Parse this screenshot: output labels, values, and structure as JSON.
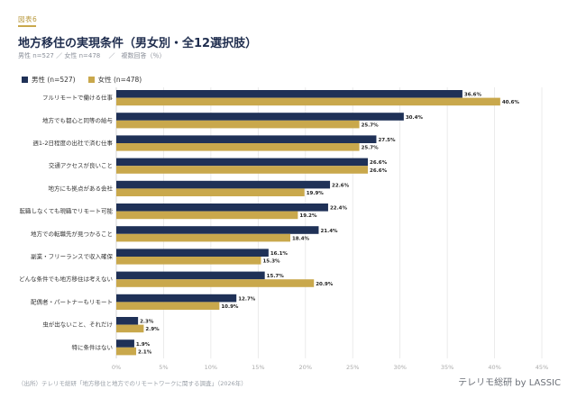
{
  "header": {
    "figure_tag": "図表6",
    "title": "地方移住の実現条件（男女別・全12選択肢）",
    "subtitle": "男性 n=527 ／ 女性 n=478 　／　複数回答（％）"
  },
  "footer": {
    "source": "（出所）テレリモ総研「地方移住と地方でのリモートワークに関する調査」（2026年）",
    "brand": "テレリモ総研 by LASSIC"
  },
  "colors": {
    "male": "#1f3157",
    "female": "#c9a84c",
    "grid": "#e6e6e6"
  },
  "chart_data": {
    "type": "bar",
    "orientation": "horizontal",
    "title": "地方移住の実現条件（男女別・全12選択肢）",
    "legend_position": "top-left",
    "grid": true,
    "xlim": [
      0,
      45
    ],
    "x_ticks": [
      "0%",
      "5%",
      "10%",
      "15%",
      "20%",
      "25%",
      "30%",
      "35%",
      "40%",
      "45%"
    ],
    "tick_values": [
      0,
      5,
      10,
      15,
      20,
      25,
      30,
      35,
      40,
      45
    ],
    "categories": [
      "フルリモートで働ける仕事",
      "地方でも都心と同等の給与",
      "週1-2日程度の出社で済む仕事",
      "交通アクセスが良いこと",
      "地方にも拠点がある会社",
      "転職しなくても現職でリモート可能",
      "地方での転職先が見つかること",
      "副業・フリーランスで収入確保",
      "どんな条件でも地方移住は考えない",
      "配偶者・パートナーもリモート",
      "虫が出ないこと、それだけ",
      "特に条件はない"
    ],
    "series": [
      {
        "name": "男性 (n=527)",
        "values": [
          36.6,
          30.4,
          27.5,
          26.6,
          22.6,
          22.4,
          21.4,
          16.1,
          15.7,
          12.7,
          2.3,
          1.9
        ]
      },
      {
        "name": "女性 (n=478)",
        "values": [
          40.6,
          25.7,
          25.7,
          26.6,
          19.9,
          19.2,
          18.4,
          15.3,
          20.9,
          10.9,
          2.9,
          2.1
        ]
      }
    ],
    "value_labels": [
      [
        "36.6%",
        "30.4%",
        "27.5%",
        "26.6%",
        "22.6%",
        "22.4%",
        "21.4%",
        "16.1%",
        "15.7%",
        "12.7%",
        "2.3%",
        "1.9%"
      ],
      [
        "40.6%",
        "25.7%",
        "25.7%",
        "26.6%",
        "19.9%",
        "19.2%",
        "18.4%",
        "15.3%",
        "20.9%",
        "10.9%",
        "2.9%",
        "2.1%"
      ]
    ]
  }
}
